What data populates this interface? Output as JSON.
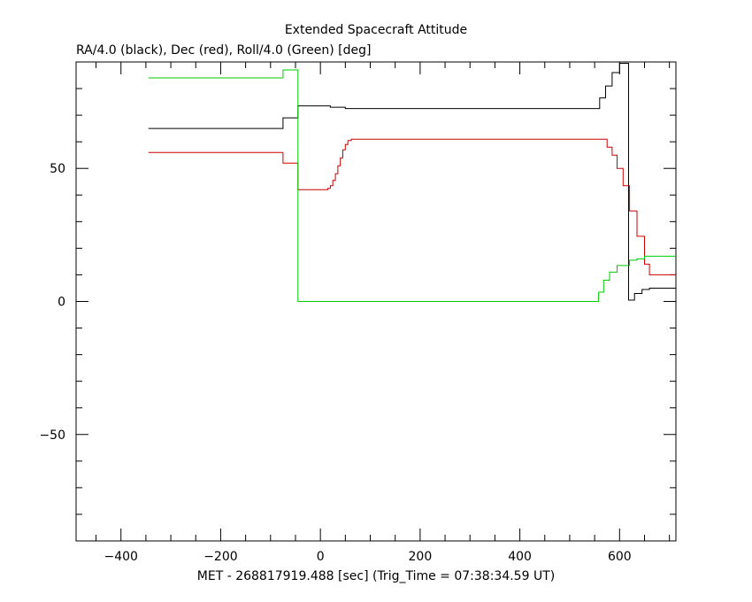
{
  "chart_data": {
    "type": "line",
    "title": "Extended Spacecraft Attitude",
    "subtitle": "RA/4.0 (black), Dec (red), Roll/4.0 (Green) [deg]",
    "xlabel": "MET - 268817919.488 [sec] (Trig_Time = 07:38:34.59 UT)",
    "ylabel": "",
    "xlim": [
      -490,
      713
    ],
    "ylim": [
      -90,
      90
    ],
    "x_ticks": [
      -400,
      -200,
      0,
      200,
      400,
      600
    ],
    "y_ticks": [
      -50,
      0,
      50
    ],
    "grid": false,
    "step": true,
    "series": [
      {
        "color": "#000000",
        "points": [
          [
            -345,
            65
          ],
          [
            -75,
            65
          ],
          [
            -75,
            69
          ],
          [
            -45,
            69
          ],
          [
            -45,
            73.5
          ],
          [
            20,
            73.5
          ],
          [
            20,
            73
          ],
          [
            50,
            73
          ],
          [
            50,
            72.5
          ],
          [
            560,
            72.5
          ],
          [
            560,
            76.5
          ],
          [
            572,
            76.5
          ],
          [
            572,
            81
          ],
          [
            585,
            81
          ],
          [
            585,
            86
          ],
          [
            600,
            86
          ],
          [
            600,
            89.5
          ],
          [
            618,
            89.5
          ],
          [
            618,
            0.5
          ],
          [
            630,
            0.5
          ],
          [
            630,
            3
          ],
          [
            645,
            3
          ],
          [
            645,
            4.5
          ],
          [
            660,
            4.5
          ],
          [
            660,
            5
          ],
          [
            713,
            5
          ]
        ]
      },
      {
        "color": "#cc0000",
        "points": [
          [
            -345,
            56
          ],
          [
            -75,
            56
          ],
          [
            -75,
            52
          ],
          [
            -45,
            52
          ],
          [
            -45,
            42
          ],
          [
            15,
            42
          ],
          [
            15,
            42.5
          ],
          [
            20,
            42.5
          ],
          [
            20,
            43.5
          ],
          [
            25,
            43.5
          ],
          [
            25,
            45.5
          ],
          [
            30,
            45.5
          ],
          [
            30,
            48
          ],
          [
            35,
            48
          ],
          [
            35,
            51
          ],
          [
            40,
            51
          ],
          [
            40,
            54
          ],
          [
            45,
            54
          ],
          [
            45,
            57
          ],
          [
            50,
            57
          ],
          [
            50,
            59
          ],
          [
            55,
            59
          ],
          [
            55,
            60.5
          ],
          [
            62,
            60.5
          ],
          [
            62,
            61
          ],
          [
            575,
            61
          ],
          [
            575,
            58
          ],
          [
            585,
            58
          ],
          [
            585,
            55
          ],
          [
            595,
            55
          ],
          [
            595,
            50
          ],
          [
            607,
            50
          ],
          [
            607,
            43.5
          ],
          [
            620,
            43.5
          ],
          [
            620,
            34
          ],
          [
            635,
            34
          ],
          [
            635,
            24.5
          ],
          [
            650,
            24.5
          ],
          [
            650,
            14
          ],
          [
            660,
            14
          ],
          [
            660,
            10
          ],
          [
            713,
            10
          ]
        ]
      },
      {
        "color": "#00cc00",
        "points": [
          [
            -345,
            84
          ],
          [
            -75,
            84
          ],
          [
            -75,
            87
          ],
          [
            -45,
            87
          ],
          [
            -45,
            0
          ],
          [
            558,
            0
          ],
          [
            558,
            3.5
          ],
          [
            568,
            3.5
          ],
          [
            568,
            8
          ],
          [
            580,
            8
          ],
          [
            580,
            11
          ],
          [
            595,
            11
          ],
          [
            595,
            13.5
          ],
          [
            620,
            13.5
          ],
          [
            620,
            15.5
          ],
          [
            635,
            15.5
          ],
          [
            635,
            16
          ],
          [
            650,
            16
          ],
          [
            650,
            17
          ],
          [
            713,
            17
          ]
        ]
      }
    ]
  }
}
